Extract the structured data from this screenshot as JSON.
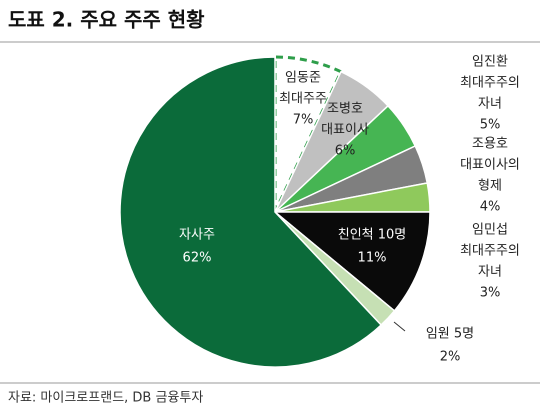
{
  "chart_data": {
    "type": "pie",
    "title": "도표 2. 주요 주주 현황",
    "source": "자료: 마이크로프랜드, DB 금융투자",
    "categories": [
      [
        "임동준",
        "최대주주"
      ],
      [
        "조병호",
        "대표이사"
      ],
      [
        "임진환",
        "최대주주의",
        "자녀"
      ],
      [
        "조용호",
        "대표이사의",
        "형제"
      ],
      [
        "임민섭",
        "최대주주의",
        "자녀"
      ],
      [
        "친인척 10명"
      ],
      [
        "임원 5명"
      ],
      [
        "자사주"
      ]
    ],
    "values": [
      7,
      6,
      5,
      4,
      3,
      11,
      2,
      62
    ],
    "value_labels": [
      "7%",
      "6%",
      "5%",
      "4%",
      "3%",
      "11%",
      "2%",
      "62%"
    ],
    "colors": [
      "#ffffff",
      "#c0c0c0",
      "#46b553",
      "#7f7f7f",
      "#8fc95c",
      "#0a0a0a",
      "#c6e0b4",
      "#0b6b3a"
    ]
  }
}
